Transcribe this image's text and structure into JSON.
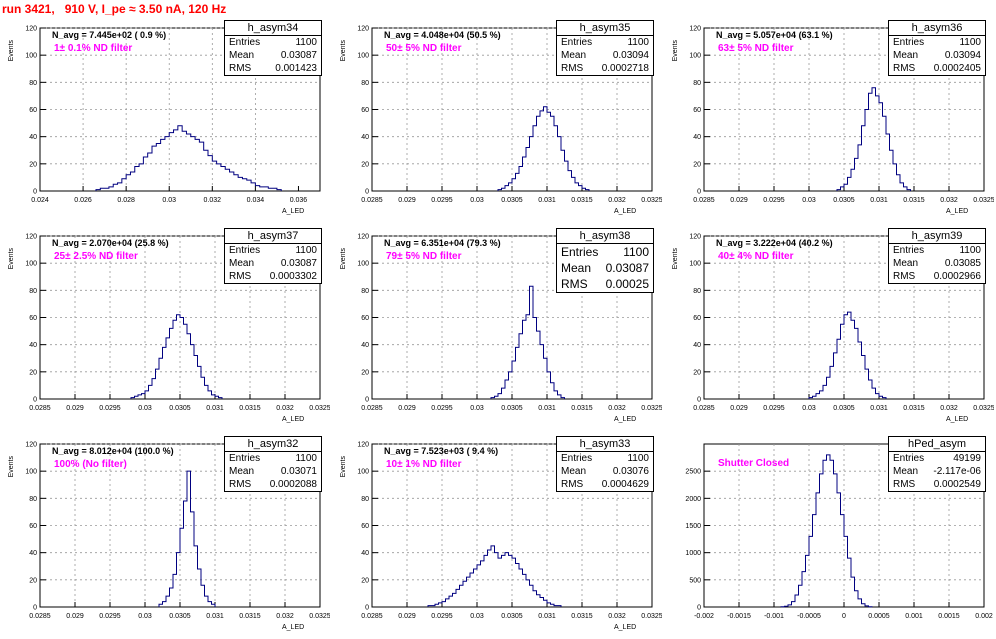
{
  "title": "run 3421,   910 V, I_pe ≈ 3.50 nA, 120 Hz",
  "colors": {
    "line": "#000080",
    "grid": "#999999",
    "title": "#ff0000",
    "filter": "#ff00ff"
  },
  "stat_labels": {
    "entries": "Entries",
    "mean": "Mean",
    "rms": "RMS"
  },
  "chart_data": [
    {
      "type": "bar",
      "name": "h_asym34",
      "title": "h_asym34",
      "ylabel": "Events",
      "xlabel": "A_LED",
      "navg": "N_avg = 7.445e+02 ( 0.9 %)",
      "filter": "1± 0.1% ND filter",
      "entries": "1100",
      "mean": "0.03087",
      "rms": "0.001423",
      "xlim": [
        0.024,
        0.037
      ],
      "ylim": [
        0,
        120
      ],
      "xticks": [
        "0.024",
        "0.026",
        "0.028",
        "0.03",
        "0.032",
        "0.034",
        "0.036"
      ],
      "yticks": [
        "0",
        "20",
        "40",
        "60",
        "80",
        "100",
        "120"
      ],
      "bins_x0": 0.0266,
      "bin_width": 0.0002,
      "counts": [
        1,
        2,
        2,
        3,
        5,
        6,
        9,
        12,
        14,
        18,
        20,
        25,
        28,
        33,
        35,
        38,
        40,
        43,
        45,
        48,
        44,
        42,
        40,
        38,
        36,
        30,
        26,
        22,
        20,
        18,
        16,
        14,
        12,
        10,
        9,
        8,
        6,
        4,
        3,
        3,
        2,
        2,
        1
      ]
    },
    {
      "type": "bar",
      "name": "h_asym35",
      "title": "h_asym35",
      "ylabel": "Events",
      "xlabel": "A_LED",
      "navg": "N_avg = 4.048e+04 (50.5 %)",
      "filter": "50± 5% ND filter",
      "entries": "1100",
      "mean": "0.03094",
      "rms": "0.0002718",
      "xlim": [
        0.0285,
        0.0325
      ],
      "ylim": [
        0,
        120
      ],
      "xticks": [
        "0.0285",
        "0.029",
        "0.0295",
        "0.03",
        "0.0305",
        "0.031",
        "0.0315",
        "0.032",
        "0.0325"
      ],
      "yticks": [
        "0",
        "20",
        "40",
        "60",
        "80",
        "100",
        "120"
      ],
      "bins_x0": 0.0303,
      "bin_width": 5e-05,
      "counts": [
        1,
        2,
        4,
        6,
        9,
        13,
        18,
        25,
        32,
        40,
        48,
        55,
        59,
        62,
        58,
        55,
        48,
        40,
        30,
        22,
        15,
        10,
        6,
        4,
        2,
        1
      ]
    },
    {
      "type": "bar",
      "name": "h_asym36",
      "title": "h_asym36",
      "ylabel": "Events",
      "xlabel": "A_LED",
      "navg": "N_avg = 5.057e+04 (63.1 %)",
      "filter": "63± 5% ND filter",
      "entries": "1100",
      "mean": "0.03094",
      "rms": "0.0002405",
      "xlim": [
        0.0285,
        0.0325
      ],
      "ylim": [
        0,
        120
      ],
      "xticks": [
        "0.0285",
        "0.029",
        "0.0295",
        "0.03",
        "0.0305",
        "0.031",
        "0.0315",
        "0.032",
        "0.0325"
      ],
      "yticks": [
        "0",
        "20",
        "40",
        "60",
        "80",
        "100",
        "120"
      ],
      "bins_x0": 0.0304,
      "bin_width": 5e-05,
      "counts": [
        1,
        3,
        5,
        10,
        16,
        24,
        34,
        48,
        60,
        72,
        76,
        70,
        65,
        55,
        42,
        30,
        20,
        12,
        6,
        3,
        1
      ]
    },
    {
      "type": "bar",
      "name": "h_asym37",
      "title": "h_asym37",
      "ylabel": "Events",
      "xlabel": "A_LED",
      "navg": "N_avg = 2.070e+04 (25.8 %)",
      "filter": "25± 2.5% ND filter",
      "entries": "1100",
      "mean": "0.03087",
      "rms": "0.0003302",
      "xlim": [
        0.0285,
        0.0325
      ],
      "ylim": [
        0,
        120
      ],
      "xticks": [
        "0.0285",
        "0.029",
        "0.0295",
        "0.03",
        "0.0305",
        "0.031",
        "0.0315",
        "0.032",
        "0.0325"
      ],
      "yticks": [
        "0",
        "20",
        "40",
        "60",
        "80",
        "100",
        "120"
      ],
      "bins_x0": 0.0298,
      "bin_width": 5e-05,
      "counts": [
        1,
        2,
        3,
        4,
        6,
        10,
        15,
        22,
        30,
        38,
        45,
        52,
        58,
        62,
        60,
        55,
        48,
        40,
        32,
        24,
        16,
        10,
        6,
        3,
        2,
        1
      ]
    },
    {
      "type": "bar",
      "name": "h_asym38",
      "title": "h_asym38",
      "ylabel": "Events",
      "xlabel": "A_LED",
      "navg": "N_avg = 6.351e+04 (79.3 %)",
      "filter": "79± 5% ND filter",
      "entries": "1100",
      "mean": "0.03087",
      "rms": "0.00025",
      "xlim": [
        0.0285,
        0.0325
      ],
      "ylim": [
        0,
        120
      ],
      "xticks": [
        "0.0285",
        "0.029",
        "0.0295",
        "0.03",
        "0.0305",
        "0.031",
        "0.0315",
        "0.032",
        "0.0325"
      ],
      "yticks": [
        "0",
        "20",
        "40",
        "60",
        "80",
        "100",
        "120"
      ],
      "bins_x0": 0.0302,
      "bin_width": 5e-05,
      "counts": [
        1,
        2,
        4,
        8,
        14,
        20,
        28,
        38,
        48,
        58,
        62,
        83,
        60,
        50,
        40,
        30,
        20,
        12,
        6,
        3,
        1
      ]
    },
    {
      "type": "bar",
      "name": "h_asym39",
      "title": "h_asym39",
      "ylabel": "Events",
      "xlabel": "A_LED",
      "navg": "N_avg = 3.222e+04 (40.2 %)",
      "filter": "40± 4% ND filter",
      "entries": "1100",
      "mean": "0.03085",
      "rms": "0.0002966",
      "xlim": [
        0.0285,
        0.0325
      ],
      "ylim": [
        0,
        120
      ],
      "xticks": [
        "0.0285",
        "0.029",
        "0.0295",
        "0.03",
        "0.0305",
        "0.031",
        "0.0315",
        "0.032",
        "0.0325"
      ],
      "yticks": [
        "0",
        "20",
        "40",
        "60",
        "80",
        "100",
        "120"
      ],
      "bins_x0": 0.03,
      "bin_width": 5e-05,
      "counts": [
        1,
        2,
        4,
        6,
        10,
        16,
        24,
        34,
        44,
        55,
        62,
        64,
        58,
        52,
        42,
        32,
        22,
        14,
        8,
        4,
        2,
        1
      ]
    },
    {
      "type": "bar",
      "name": "h_asym32",
      "title": "h_asym32",
      "ylabel": "Events",
      "xlabel": "A_LED",
      "navg": "N_avg = 8.012e+04 (100.0 %)",
      "filter": "100% (No filter)",
      "entries": "1100",
      "mean": "0.03071",
      "rms": "0.0002088",
      "xlim": [
        0.0285,
        0.0325
      ],
      "ylim": [
        0,
        120
      ],
      "xticks": [
        "0.0285",
        "0.029",
        "0.0295",
        "0.03",
        "0.0305",
        "0.031",
        "0.0315",
        "0.032",
        "0.0325"
      ],
      "yticks": [
        "0",
        "20",
        "40",
        "60",
        "80",
        "100",
        "120"
      ],
      "bins_x0": 0.0302,
      "bin_width": 5e-05,
      "counts": [
        2,
        4,
        8,
        14,
        24,
        40,
        58,
        78,
        100,
        70,
        45,
        28,
        16,
        8,
        4,
        2
      ]
    },
    {
      "type": "bar",
      "name": "h_asym33",
      "title": "h_asym33",
      "ylabel": "Events",
      "xlabel": "A_LED",
      "navg": "N_avg = 7.523e+03 ( 9.4 %)",
      "filter": "10± 1% ND filter",
      "entries": "1100",
      "mean": "0.03076",
      "rms": "0.0004629",
      "xlim": [
        0.0285,
        0.0325
      ],
      "ylim": [
        0,
        120
      ],
      "xticks": [
        "0.0285",
        "0.029",
        "0.0295",
        "0.03",
        "0.0305",
        "0.031",
        "0.0315",
        "0.032",
        "0.0325"
      ],
      "yticks": [
        "0",
        "20",
        "40",
        "60",
        "80",
        "100",
        "120"
      ],
      "bins_x0": 0.0293,
      "bin_width": 5e-05,
      "counts": [
        1,
        1,
        2,
        3,
        4,
        6,
        8,
        10,
        13,
        16,
        19,
        22,
        25,
        28,
        31,
        34,
        38,
        42,
        45,
        40,
        36,
        38,
        40,
        38,
        36,
        32,
        28,
        24,
        20,
        16,
        12,
        9,
        7,
        5,
        3,
        2,
        1,
        1
      ]
    },
    {
      "type": "bar",
      "name": "hPed_asym",
      "title": "hPed_asym",
      "ylabel": "",
      "xlabel": "",
      "navg": "",
      "filter": "Shutter Closed",
      "entries": "49199",
      "mean": "-2.117e-06",
      "rms": "0.0002549",
      "xlim": [
        -0.002,
        0.002
      ],
      "ylim": [
        0,
        3000
      ],
      "xticks": [
        "-0.002",
        "-0.0015",
        "-0.001",
        "-0.0005",
        "0",
        "0.0005",
        "0.001",
        "0.0015",
        "0.002"
      ],
      "yticks": [
        "0",
        "500",
        "1000",
        "1500",
        "2000",
        "2500"
      ],
      "bins_x0": -0.0009,
      "bin_width": 5e-05,
      "counts": [
        5,
        15,
        40,
        100,
        220,
        400,
        650,
        950,
        1300,
        1700,
        2100,
        2450,
        2700,
        2800,
        2700,
        2450,
        2100,
        1700,
        1300,
        900,
        550,
        300,
        150,
        60,
        20,
        5
      ]
    }
  ]
}
